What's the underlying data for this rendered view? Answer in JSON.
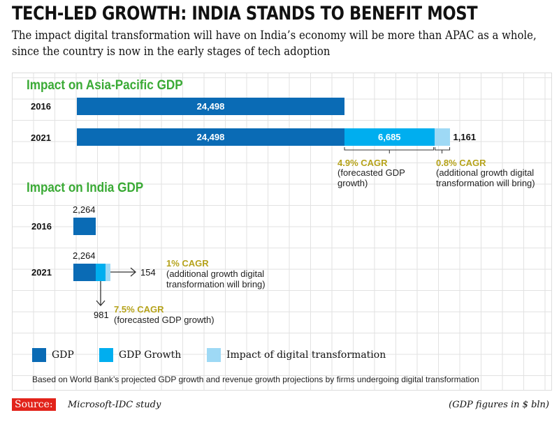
{
  "title": "TECH-LED GROWTH: INDIA STANDS TO BENEFIT MOST",
  "subtitle": "The impact digital transformation will have on India’s economy will be more than APAC as a whole, since the country is now in the early stages of tech adoption",
  "colors": {
    "gdp": "#0a6bb5",
    "growth": "#00aeef",
    "impact": "#9ed9f5",
    "section": "#3aaa35",
    "cagr": "#b5a21a",
    "source": "#e2231a"
  },
  "chart_data": [
    {
      "type": "bar",
      "orientation": "horizontal",
      "stacked": true,
      "title": "Impact on Asia-Pacific GDP",
      "categories": [
        "2016",
        "2021"
      ],
      "series": [
        {
          "name": "GDP",
          "values": [
            24498,
            24498
          ]
        },
        {
          "name": "GDP Growth",
          "values": [
            0,
            6685
          ]
        },
        {
          "name": "Impact of digital transformation",
          "values": [
            0,
            1161
          ]
        }
      ],
      "labels": {
        "gdp_2016": "24,498",
        "gdp_2021": "24,498",
        "growth_2021": "6,685",
        "impact_2021": "1,161"
      },
      "annotations": [
        {
          "cagr": "4.9% CAGR",
          "text": "(forecasted GDP growth)"
        },
        {
          "cagr": "0.8% CAGR",
          "text": "(additional growth digital transformation will bring)"
        }
      ]
    },
    {
      "type": "bar",
      "orientation": "horizontal",
      "stacked": true,
      "title": "Impact on India GDP",
      "categories": [
        "2016",
        "2021"
      ],
      "series": [
        {
          "name": "GDP",
          "values": [
            2264,
            2264
          ]
        },
        {
          "name": "GDP Growth",
          "values": [
            0,
            981
          ]
        },
        {
          "name": "Impact of digital transformation",
          "values": [
            0,
            154
          ]
        }
      ],
      "labels": {
        "gdp_2016": "2,264",
        "gdp_2021": "2,264",
        "growth_2021": "981",
        "impact_2021": "154"
      },
      "annotations": [
        {
          "cagr": "1% CAGR",
          "text": "(additional growth digital transformation will bring)"
        },
        {
          "cagr": "7.5% CAGR",
          "text": "(forecasted GDP growth)"
        }
      ]
    }
  ],
  "legend": [
    "GDP",
    "GDP Growth",
    "Impact of digital transformation"
  ],
  "footnote": "Based on World Bank’s projected GDP growth and revenue growth projections by firms undergoing digital transformation",
  "source_label": "Source:",
  "source": "Microsoft-IDC study",
  "units": "(GDP figures in $ bln)"
}
